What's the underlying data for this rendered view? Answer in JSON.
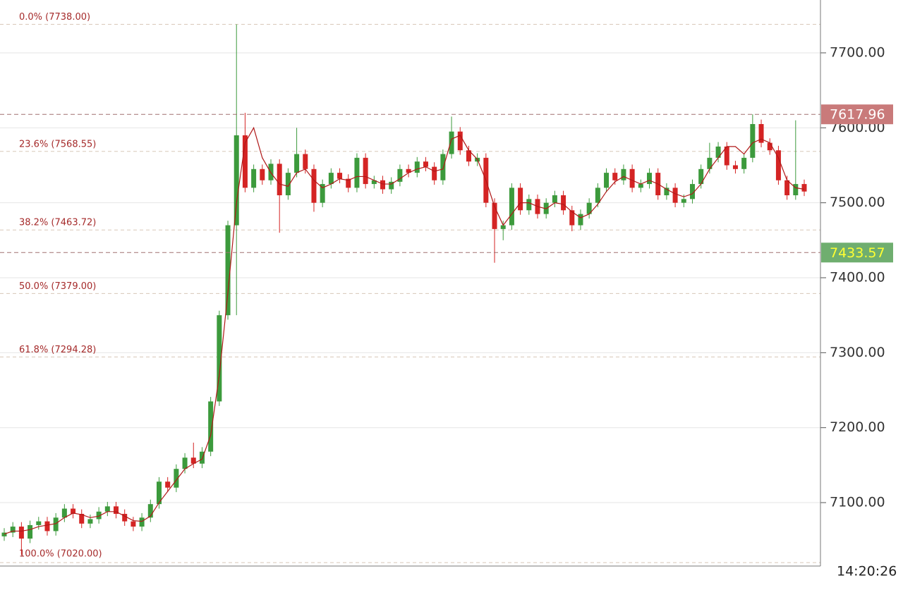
{
  "chart_data": {
    "type": "candlestick",
    "up_color": "#3c9a3c",
    "down_color": "#d42424",
    "ma_color": "#b01818",
    "grid": true,
    "ylim": [
      7015.4,
      7770.5
    ],
    "yticks": [
      {
        "value": 7100,
        "label": "7100.00"
      },
      {
        "value": 7200,
        "label": "7200.00"
      },
      {
        "value": 7300,
        "label": "7300.00"
      },
      {
        "value": 7400,
        "label": "7400.00"
      },
      {
        "value": 7500,
        "label": "7500.00"
      },
      {
        "value": 7600,
        "label": "7600.00"
      },
      {
        "value": 7700,
        "label": "7700.00"
      }
    ],
    "fib_levels": [
      {
        "value": 7738,
        "label": "0.0% (7738.00)"
      },
      {
        "value": 7568.55,
        "label": "23.6% (7568.55)"
      },
      {
        "value": 7463.72,
        "label": "38.2% (7463.72)"
      },
      {
        "value": 7379,
        "label": "50.0% (7379.00)"
      },
      {
        "value": 7294.28,
        "label": "61.8% (7294.28)"
      },
      {
        "value": 7020,
        "label": "100.0% (7020.00)"
      }
    ],
    "price_markers": [
      {
        "value": 7617.96,
        "color": "#c97a7a",
        "text_color": "#ffffff"
      },
      {
        "value": 7433.57,
        "color": "#6fae6f",
        "text_color": "#ffff33"
      }
    ],
    "time_label": "14:20:26",
    "open": [
      7055,
      7060,
      7068,
      7052,
      7070,
      7075,
      7062,
      7080,
      7092,
      7085,
      7072,
      7078,
      7088,
      7095,
      7085,
      7075,
      7068,
      7080,
      7098,
      7128,
      7120,
      7145,
      7160,
      7152,
      7168,
      7235,
      7350,
      7470,
      7590,
      7520,
      7545,
      7530,
      7552,
      7510,
      7540,
      7565,
      7545,
      7500,
      7525,
      7540,
      7532,
      7520,
      7560,
      7525,
      7530,
      7518,
      7528,
      7545,
      7540,
      7555,
      7548,
      7530,
      7565,
      7595,
      7570,
      7555,
      7560,
      7500,
      7465,
      7470,
      7520,
      7490,
      7505,
      7485,
      7500,
      7510,
      7490,
      7470,
      7485,
      7500,
      7520,
      7540,
      7530,
      7545,
      7520,
      7525,
      7540,
      7510,
      7520,
      7500,
      7505,
      7525,
      7545,
      7560,
      7575,
      7550,
      7545,
      7560,
      7605,
      7580,
      7570,
      7530,
      7510,
      7525
    ],
    "high": [
      7066,
      7074,
      7074,
      7076,
      7081,
      7081,
      7086,
      7098,
      7098,
      7091,
      7084,
      7094,
      7101,
      7101,
      7091,
      7081,
      7086,
      7104,
      7134,
      7134,
      7151,
      7166,
      7180,
      7174,
      7241,
      7356,
      7476,
      7738,
      7620,
      7551,
      7551,
      7558,
      7558,
      7546,
      7600,
      7571,
      7551,
      7531,
      7546,
      7546,
      7538,
      7566,
      7566,
      7536,
      7536,
      7534,
      7551,
      7551,
      7561,
      7561,
      7554,
      7571,
      7615,
      7601,
      7576,
      7566,
      7566,
      7506,
      7476,
      7526,
      7526,
      7511,
      7511,
      7506,
      7516,
      7516,
      7496,
      7491,
      7506,
      7526,
      7546,
      7546,
      7551,
      7551,
      7531,
      7546,
      7546,
      7526,
      7526,
      7511,
      7531,
      7551,
      7580,
      7581,
      7581,
      7556,
      7566,
      7618,
      7611,
      7586,
      7576,
      7536,
      7610,
      7531
    ],
    "low": [
      7049,
      7054,
      7030,
      7046,
      7064,
      7056,
      7056,
      7074,
      7079,
      7066,
      7066,
      7072,
      7082,
      7079,
      7069,
      7062,
      7062,
      7074,
      7092,
      7114,
      7114,
      7139,
      7146,
      7146,
      7162,
      7229,
      7344,
      7350,
      7514,
      7514,
      7524,
      7524,
      7460,
      7504,
      7534,
      7539,
      7488,
      7494,
      7519,
      7526,
      7514,
      7514,
      7519,
      7519,
      7512,
      7512,
      7522,
      7534,
      7534,
      7542,
      7524,
      7524,
      7559,
      7564,
      7549,
      7549,
      7494,
      7420,
      7450,
      7464,
      7484,
      7484,
      7479,
      7479,
      7494,
      7484,
      7462,
      7464,
      7479,
      7494,
      7514,
      7524,
      7524,
      7514,
      7514,
      7519,
      7504,
      7504,
      7494,
      7494,
      7499,
      7519,
      7539,
      7554,
      7544,
      7539,
      7539,
      7554,
      7574,
      7564,
      7524,
      7504,
      7504,
      7509
    ],
    "close": [
      7060,
      7068,
      7052,
      7070,
      7075,
      7062,
      7080,
      7092,
      7085,
      7072,
      7078,
      7088,
      7095,
      7085,
      7075,
      7068,
      7080,
      7098,
      7128,
      7120,
      7145,
      7160,
      7152,
      7168,
      7235,
      7350,
      7470,
      7590,
      7520,
      7545,
      7530,
      7552,
      7510,
      7540,
      7565,
      7545,
      7500,
      7525,
      7540,
      7532,
      7520,
      7560,
      7525,
      7530,
      7518,
      7528,
      7545,
      7540,
      7555,
      7548,
      7530,
      7565,
      7595,
      7570,
      7555,
      7560,
      7500,
      7465,
      7470,
      7520,
      7490,
      7505,
      7485,
      7500,
      7510,
      7490,
      7470,
      7485,
      7500,
      7520,
      7540,
      7530,
      7545,
      7520,
      7525,
      7540,
      7510,
      7520,
      7500,
      7505,
      7525,
      7545,
      7560,
      7575,
      7550,
      7545,
      7560,
      7605,
      7580,
      7570,
      7530,
      7510,
      7525,
      7515
    ],
    "ma": [
      7058,
      7062,
      7062,
      7064,
      7068,
      7070,
      7072,
      7080,
      7086,
      7084,
      7080,
      7082,
      7088,
      7088,
      7082,
      7076,
      7075,
      7082,
      7100,
      7115,
      7130,
      7145,
      7152,
      7158,
      7190,
      7270,
      7380,
      7500,
      7580,
      7600,
      7560,
      7540,
      7525,
      7522,
      7540,
      7545,
      7530,
      7520,
      7525,
      7532,
      7530,
      7535,
      7535,
      7530,
      7525,
      7525,
      7532,
      7540,
      7545,
      7548,
      7542,
      7545,
      7585,
      7590,
      7570,
      7558,
      7530,
      7495,
      7470,
      7485,
      7500,
      7500,
      7495,
      7492,
      7500,
      7498,
      7488,
      7480,
      7485,
      7498,
      7515,
      7528,
      7535,
      7530,
      7525,
      7530,
      7525,
      7518,
      7512,
      7508,
      7512,
      7525,
      7545,
      7560,
      7575,
      7575,
      7565,
      7580,
      7585,
      7580,
      7560,
      7530,
      7520,
      7518
    ]
  }
}
